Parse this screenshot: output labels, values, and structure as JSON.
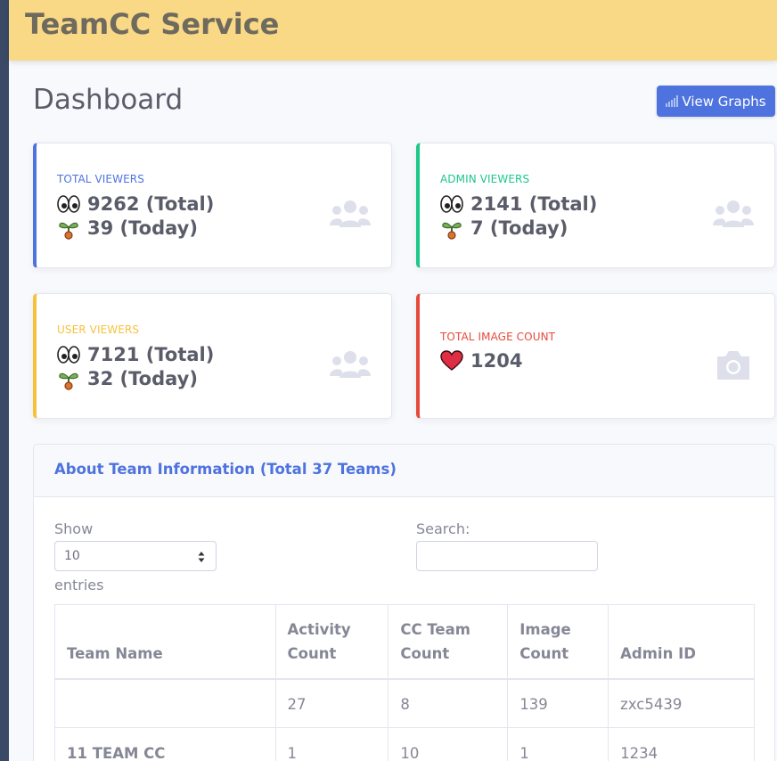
{
  "header": {
    "brand": "TeamCC Service"
  },
  "page": {
    "title": "Dashboard",
    "graph_button_label": "View Graphs"
  },
  "cards": [
    {
      "label": "Total Viewers",
      "total": "9262 (Total)",
      "today": "39 (Today)",
      "icon": "users-icon",
      "accent": "#4e73df"
    },
    {
      "label": "Admin Viewers",
      "total": "2141 (Total)",
      "today": "7 (Today)",
      "icon": "users-icon",
      "accent": "#1cc88a"
    },
    {
      "label": "User Viewers",
      "total": "7121 (Total)",
      "today": "32 (Today)",
      "icon": "users-icon",
      "accent": "#f6c23e"
    },
    {
      "label": "Total Image Count",
      "count": "1204",
      "icon": "camera-icon",
      "accent": "#e74a3b"
    }
  ],
  "team_table": {
    "title": "About Team Information (Total 37 Teams)",
    "show_label": "Show",
    "entries_value": "10",
    "entries_label": "entries",
    "search_label": "Search:",
    "columns": [
      "Team Name",
      "Activity Count",
      "CC Team Count",
      "Image Count",
      "Admin ID"
    ],
    "rows": [
      [
        "",
        "27",
        "8",
        "139",
        "zxc5439"
      ],
      [
        "11 TEAM CC",
        "1",
        "10",
        "1",
        "1234"
      ]
    ]
  }
}
